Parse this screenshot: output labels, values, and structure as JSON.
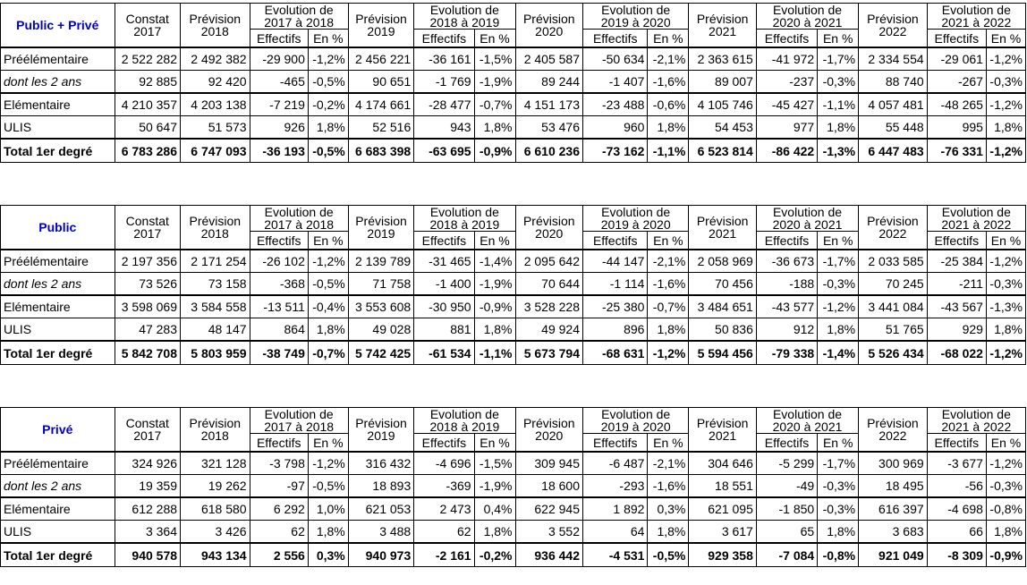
{
  "headers": {
    "constat": [
      "Constat",
      "2017"
    ],
    "prevision_label": "Prévision",
    "years": [
      "2018",
      "2019",
      "2020",
      "2021",
      "2022"
    ],
    "evolutions": [
      [
        "Evolution de",
        "2017 à 2018"
      ],
      [
        "Evolution de",
        "2018 à 2019"
      ],
      [
        "Evolution de",
        "2019 à 2020"
      ],
      [
        "Evolution de",
        "2020 à 2021"
      ],
      [
        "Evolution de",
        "2021 à 2022"
      ]
    ],
    "effectifs": "Effectifs",
    "en_pct": "En %"
  },
  "blocks": [
    {
      "title": "Public + Privé",
      "rows": [
        {
          "label": "Préélémentaire",
          "style": "normal",
          "values": [
            "2 522 282",
            "2 492 382",
            "-29 900",
            "-1,2%",
            "2 456 221",
            "-36 161",
            "-1,5%",
            "2 405 587",
            "-50 634",
            "-2,1%",
            "2 363 615",
            "-41 972",
            "-1,7%",
            "2 334 554",
            "-29 061",
            "-1,2%"
          ]
        },
        {
          "label": "dont les 2 ans",
          "style": "indent",
          "values": [
            "92 885",
            "92 420",
            "-465",
            "-0,5%",
            "90 651",
            "-1 769",
            "-1,9%",
            "89 244",
            "-1 407",
            "-1,6%",
            "89 007",
            "-237",
            "-0,3%",
            "88 740",
            "-267",
            "-0,3%"
          ]
        },
        {
          "label": "Elémentaire",
          "style": "sep",
          "values": [
            "4 210 357",
            "4 203 138",
            "-7 219",
            "-0,2%",
            "4 174 661",
            "-28 477",
            "-0,7%",
            "4 151 173",
            "-23 488",
            "-0,6%",
            "4 105 746",
            "-45 427",
            "-1,1%",
            "4 057 481",
            "-48 265",
            "-1,2%"
          ]
        },
        {
          "label": "ULIS",
          "style": "normal",
          "values": [
            "50 647",
            "51 573",
            "926",
            "1,8%",
            "52 516",
            "943",
            "1,8%",
            "53 476",
            "960",
            "1,8%",
            "54 453",
            "977",
            "1,8%",
            "55 448",
            "995",
            "1,8%"
          ]
        },
        {
          "label": "Total 1er degré",
          "style": "total",
          "values": [
            "6 783 286",
            "6 747 093",
            "-36 193",
            "-0,5%",
            "6 683 398",
            "-63 695",
            "-0,9%",
            "6 610 236",
            "-73 162",
            "-1,1%",
            "6 523 814",
            "-86 422",
            "-1,3%",
            "6 447 483",
            "-76 331",
            "-1,2%"
          ]
        }
      ]
    },
    {
      "title": "Public",
      "rows": [
        {
          "label": "Préélémentaire",
          "style": "normal",
          "values": [
            "2 197 356",
            "2 171 254",
            "-26 102",
            "-1,2%",
            "2 139 789",
            "-31 465",
            "-1,4%",
            "2 095 642",
            "-44 147",
            "-2,1%",
            "2 058 969",
            "-36 673",
            "-1,7%",
            "2 033 585",
            "-25 384",
            "-1,2%"
          ]
        },
        {
          "label": "dont les 2 ans",
          "style": "indent",
          "values": [
            "73 526",
            "73 158",
            "-368",
            "-0,5%",
            "71 758",
            "-1 400",
            "-1,9%",
            "70 644",
            "-1 114",
            "-1,6%",
            "70 456",
            "-188",
            "-0,3%",
            "70 245",
            "-211",
            "-0,3%"
          ]
        },
        {
          "label": "Elémentaire",
          "style": "sep",
          "values": [
            "3 598 069",
            "3 584 558",
            "-13 511",
            "-0,4%",
            "3 553 608",
            "-30 950",
            "-0,9%",
            "3 528 228",
            "-25 380",
            "-0,7%",
            "3 484 651",
            "-43 577",
            "-1,2%",
            "3 441 084",
            "-43 567",
            "-1,3%"
          ]
        },
        {
          "label": "ULIS",
          "style": "normal",
          "values": [
            "47 283",
            "48 147",
            "864",
            "1,8%",
            "49 028",
            "881",
            "1,8%",
            "49 924",
            "896",
            "1,8%",
            "50 836",
            "912",
            "1,8%",
            "51 765",
            "929",
            "1,8%"
          ]
        },
        {
          "label": "Total 1er degré",
          "style": "total",
          "values": [
            "5 842 708",
            "5 803 959",
            "-38 749",
            "-0,7%",
            "5 742 425",
            "-61 534",
            "-1,1%",
            "5 673 794",
            "-68 631",
            "-1,2%",
            "5 594 456",
            "-79 338",
            "-1,4%",
            "5 526 434",
            "-68 022",
            "-1,2%"
          ]
        }
      ]
    },
    {
      "title": "Privé",
      "rows": [
        {
          "label": "Préélémentaire",
          "style": "normal",
          "values": [
            "324 926",
            "321 128",
            "-3 798",
            "-1,2%",
            "316 432",
            "-4 696",
            "-1,5%",
            "309 945",
            "-6 487",
            "-2,1%",
            "304 646",
            "-5 299",
            "-1,7%",
            "300 969",
            "-3 677",
            "-1,2%"
          ]
        },
        {
          "label": "dont les 2 ans",
          "style": "indent",
          "values": [
            "19 359",
            "19 262",
            "-97",
            "-0,5%",
            "18 893",
            "-369",
            "-1,9%",
            "18 600",
            "-293",
            "-1,6%",
            "18 551",
            "-49",
            "-0,3%",
            "18 495",
            "-56",
            "-0,3%"
          ]
        },
        {
          "label": "Elémentaire",
          "style": "sep",
          "values": [
            "612 288",
            "618 580",
            "6 292",
            "1,0%",
            "621 053",
            "2 473",
            "0,4%",
            "622 945",
            "1 892",
            "0,3%",
            "621 095",
            "-1 850",
            "-0,3%",
            "616 397",
            "-4 698",
            "-0,8%"
          ]
        },
        {
          "label": "ULIS",
          "style": "normal",
          "values": [
            "3 364",
            "3 426",
            "62",
            "1,8%",
            "3 488",
            "62",
            "1,8%",
            "3 552",
            "64",
            "1,8%",
            "3 617",
            "65",
            "1,8%",
            "3 683",
            "66",
            "1,8%"
          ]
        },
        {
          "label": "Total 1er degré",
          "style": "total",
          "values": [
            "940 578",
            "943 134",
            "2 556",
            "0,3%",
            "940 973",
            "-2 161",
            "-0,2%",
            "936 442",
            "-4 531",
            "-0,5%",
            "929 358",
            "-7 084",
            "-0,8%",
            "921 049",
            "-8 309",
            "-0,9%"
          ]
        }
      ]
    }
  ]
}
